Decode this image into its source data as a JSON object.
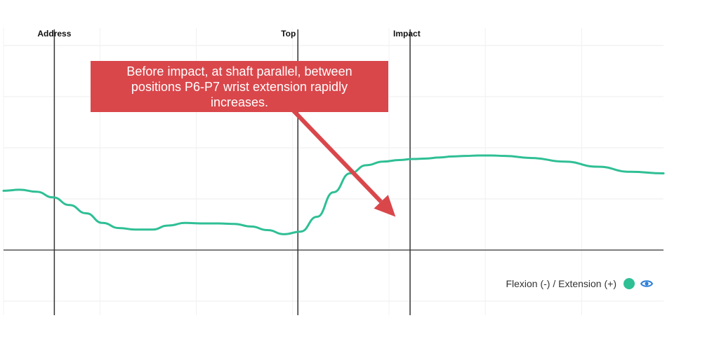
{
  "chart_data": {
    "type": "line",
    "title": "",
    "xlabel": "",
    "ylabel": "",
    "grid": true,
    "legend_position": "bottom-right",
    "series": [
      {
        "name": "Flexion (-) / Extension (+)",
        "color": "#2fbf95",
        "x": [
          0,
          2.5,
          5,
          7.5,
          10,
          12.5,
          15,
          17.5,
          20,
          22.5,
          25,
          27.5,
          30,
          32.5,
          35,
          37.5,
          40,
          42.5,
          45,
          47.5,
          50,
          52.5,
          55,
          57.5,
          60,
          62,
          64,
          66,
          68,
          70,
          72,
          74,
          76,
          80,
          85,
          90,
          95,
          100
        ],
        "values": [
          11.6,
          11.8,
          11.4,
          10.3,
          8.8,
          7.2,
          5.3,
          4.3,
          4.0,
          4.0,
          4.8,
          5.3,
          5.2,
          5.2,
          5.1,
          4.6,
          3.9,
          3.1,
          3.6,
          6.5,
          11.3,
          15.0,
          16.6,
          17.3,
          17.6,
          17.8,
          17.9,
          18.1,
          18.3,
          18.4,
          18.5,
          18.5,
          18.4,
          18.0,
          17.3,
          16.3,
          15.3,
          15.0
        ]
      }
    ],
    "events": [
      {
        "name": "Address",
        "x": 7.7
      },
      {
        "name": "Top",
        "x": 44.6
      },
      {
        "name": "Impact",
        "x": 61.6
      }
    ],
    "xlim": [
      0,
      100
    ],
    "ylim": [
      -10,
      40
    ],
    "annotations": [
      {
        "text": "Before impact, at shaft parallel, between positions P6-P7 wrist extension rapidly increases.",
        "points_to": {
          "x": 59.4,
          "y": 6.5
        },
        "color": "#d9474b"
      }
    ]
  },
  "legend": {
    "label": "Flexion (-) / Extension (+)",
    "visibility_icon": "eye-icon",
    "swatch_color": "#2fbf95",
    "icon_color": "#2d7fd8"
  }
}
